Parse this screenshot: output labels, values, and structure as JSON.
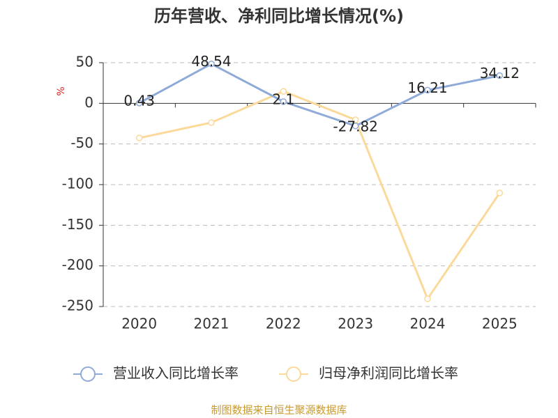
{
  "chart_data": {
    "type": "line",
    "title": "历年营收、净利同比增长情况(%)",
    "y_label": "%",
    "categories": [
      "2020",
      "2021",
      "2022",
      "2023",
      "2024",
      "2025"
    ],
    "series": [
      {
        "name": "营业收入同比增长率",
        "color": "#8eaad8",
        "values": [
          0.43,
          48.54,
          2.1,
          -27.82,
          16.21,
          34.12
        ],
        "data_labels": true
      },
      {
        "name": "归母净利润同比增长率",
        "color": "#fbd999",
        "values": [
          -42.6,
          -23.7,
          14.8,
          -20.3,
          -240.5,
          -110.3
        ],
        "data_labels": false
      }
    ],
    "ylim": [
      -250,
      50
    ],
    "yticks": [
      50,
      0,
      -50,
      -100,
      -150,
      -200,
      -250
    ],
    "grid": true,
    "legend": "bottom",
    "source": "制图数据来自恒生聚源数据库"
  }
}
